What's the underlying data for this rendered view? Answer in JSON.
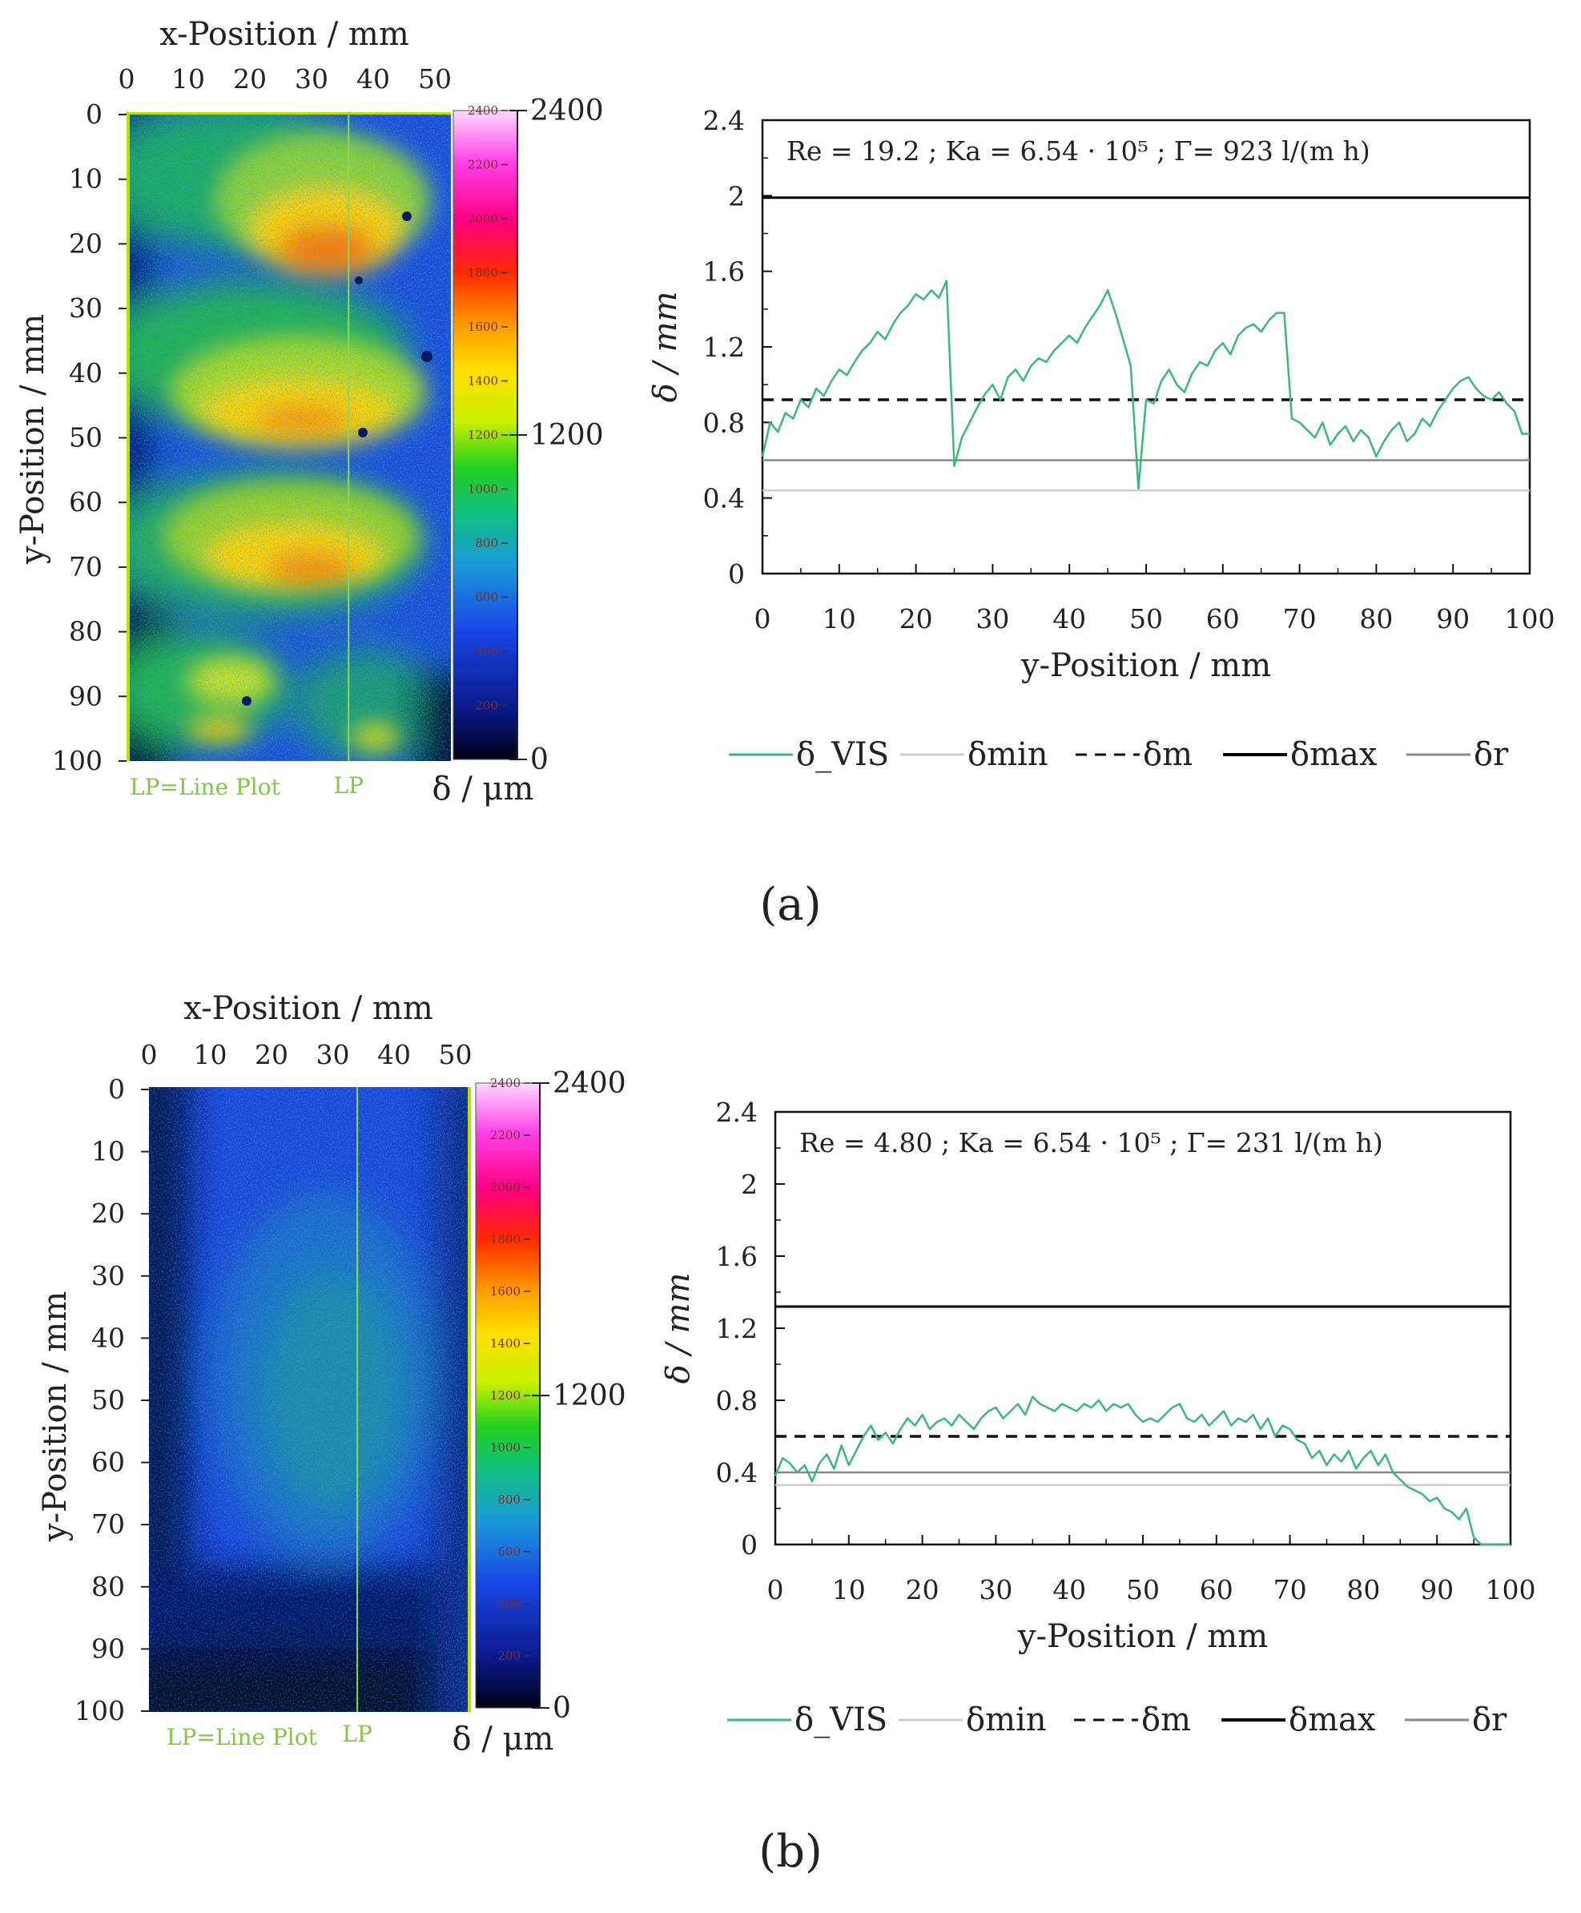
{
  "panels": [
    {
      "label": "(a)",
      "map": {
        "x_title": "x-Position / mm",
        "y_title": "y-Position / mm",
        "x_ticks": [
          "0",
          "10",
          "20",
          "30",
          "40",
          "50"
        ],
        "y_ticks": [
          "0",
          "10",
          "20",
          "30",
          "40",
          "50",
          "60",
          "70",
          "80",
          "90",
          "100"
        ],
        "lp_note": "LP=Line Plot",
        "lp_label": "LP",
        "line_plot_x_mm": 36,
        "colorbar_unit": "δ / μm",
        "colorbar_small_ticks": [
          "2400",
          "2200",
          "2000",
          "1800",
          "1600",
          "1400",
          "1200",
          "1000",
          "800",
          "600",
          "400",
          "200"
        ],
        "colorbar_big_ticks": [
          "2400",
          "1200",
          "0"
        ],
        "pattern": "waves"
      },
      "chart_data": {
        "type": "line",
        "info": "Re = 19.2 ;  Ka = 6.54 · 10⁵ ;  Γ= 923 l/(m h)",
        "xlabel": "y-Position / mm",
        "ylabel": "δ / mm",
        "xlim": [
          0,
          100
        ],
        "ylim": [
          0,
          2.4
        ],
        "x_ticks": [
          "0",
          "10",
          "20",
          "30",
          "40",
          "50",
          "60",
          "70",
          "80",
          "90",
          "100"
        ],
        "y_ticks": [
          "0",
          "0.4",
          "0.8",
          "1.2",
          "1.6",
          "2",
          "2.4"
        ],
        "series": [
          {
            "name": "δ_VIS",
            "color": "#3cb878",
            "x": [
              0,
              1,
              2,
              3,
              4,
              5,
              6,
              7,
              8,
              9,
              10,
              11,
              12,
              13,
              14,
              15,
              16,
              17,
              18,
              19,
              20,
              21,
              22,
              23,
              24,
              25,
              26,
              27,
              28,
              29,
              30,
              31,
              32,
              33,
              34,
              35,
              36,
              37,
              38,
              39,
              40,
              41,
              42,
              43,
              44,
              45,
              46,
              47,
              48,
              49,
              50,
              51,
              52,
              53,
              54,
              55,
              56,
              57,
              58,
              59,
              60,
              61,
              62,
              63,
              64,
              65,
              66,
              67,
              68,
              69,
              70,
              71,
              72,
              73,
              74,
              75,
              76,
              77,
              78,
              79,
              80,
              81,
              82,
              83,
              84,
              85,
              86,
              87,
              88,
              89,
              90,
              91,
              92,
              93,
              94,
              95,
              96,
              97,
              98,
              99,
              100
            ],
            "y": [
              0.62,
              0.8,
              0.75,
              0.85,
              0.82,
              0.92,
              0.88,
              0.98,
              0.94,
              1.02,
              1.08,
              1.05,
              1.12,
              1.18,
              1.22,
              1.28,
              1.24,
              1.32,
              1.38,
              1.42,
              1.48,
              1.45,
              1.5,
              1.46,
              1.55,
              0.57,
              0.72,
              0.8,
              0.88,
              0.95,
              1.0,
              0.92,
              1.04,
              1.08,
              1.02,
              1.1,
              1.14,
              1.12,
              1.18,
              1.22,
              1.26,
              1.22,
              1.3,
              1.36,
              1.42,
              1.5,
              1.38,
              1.24,
              1.1,
              0.45,
              0.92,
              0.9,
              1.02,
              1.08,
              1.0,
              0.96,
              1.06,
              1.12,
              1.1,
              1.18,
              1.22,
              1.16,
              1.26,
              1.3,
              1.32,
              1.28,
              1.34,
              1.38,
              1.38,
              0.82,
              0.8,
              0.76,
              0.72,
              0.8,
              0.68,
              0.74,
              0.78,
              0.7,
              0.76,
              0.72,
              0.62,
              0.7,
              0.76,
              0.8,
              0.7,
              0.74,
              0.82,
              0.78,
              0.86,
              0.92,
              0.98,
              1.02,
              1.04,
              0.98,
              0.94,
              0.92,
              0.96,
              0.9,
              0.86,
              0.74,
              0.74
            ]
          },
          {
            "name": "δmin",
            "color": "#cccccc",
            "dash": "solid",
            "value": 0.44
          },
          {
            "name": "δm",
            "color": "#111111",
            "dash": "dashed",
            "value": 0.92
          },
          {
            "name": "δmax",
            "color": "#000000",
            "dash": "solid",
            "value": 1.99
          },
          {
            "name": "δr",
            "color": "#888888",
            "dash": "solid",
            "value": 0.6
          }
        ]
      }
    },
    {
      "label": "(b)",
      "map": {
        "x_title": "x-Position / mm",
        "y_title": "y-Position / mm",
        "x_ticks": [
          "0",
          "10",
          "20",
          "30",
          "40",
          "50"
        ],
        "y_ticks": [
          "0",
          "10",
          "20",
          "30",
          "40",
          "50",
          "60",
          "70",
          "80",
          "90",
          "100"
        ],
        "lp_note": "LP=Line Plot",
        "lp_label": "LP",
        "line_plot_x_mm": 34,
        "colorbar_unit": "δ / μm",
        "colorbar_small_ticks": [
          "2400",
          "2200",
          "2000",
          "1800",
          "1600",
          "1400",
          "1200",
          "1000",
          "800",
          "600",
          "400",
          "200"
        ],
        "colorbar_big_ticks": [
          "2400",
          "1200",
          "0"
        ],
        "pattern": "flat"
      },
      "chart_data": {
        "type": "line",
        "info": "Re = 4.80 ;  Ka = 6.54 · 10⁵ ;  Γ= 231 l/(m h)",
        "xlabel": "y-Position / mm",
        "ylabel": "δ / mm",
        "xlim": [
          0,
          100
        ],
        "ylim": [
          0,
          2.4
        ],
        "x_ticks": [
          "0",
          "10",
          "20",
          "30",
          "40",
          "50",
          "60",
          "70",
          "80",
          "90",
          "100"
        ],
        "y_ticks": [
          "0",
          "0.4",
          "0.8",
          "1.2",
          "1.6",
          "2",
          "2.4"
        ],
        "series": [
          {
            "name": "δ_VIS",
            "color": "#3cb878",
            "x": [
              0,
              1,
              2,
              3,
              4,
              5,
              6,
              7,
              8,
              9,
              10,
              11,
              12,
              13,
              14,
              15,
              16,
              17,
              18,
              19,
              20,
              21,
              22,
              23,
              24,
              25,
              26,
              27,
              28,
              29,
              30,
              31,
              32,
              33,
              34,
              35,
              36,
              37,
              38,
              39,
              40,
              41,
              42,
              43,
              44,
              45,
              46,
              47,
              48,
              49,
              50,
              51,
              52,
              53,
              54,
              55,
              56,
              57,
              58,
              59,
              60,
              61,
              62,
              63,
              64,
              65,
              66,
              67,
              68,
              69,
              70,
              71,
              72,
              73,
              74,
              75,
              76,
              77,
              78,
              79,
              80,
              81,
              82,
              83,
              84,
              85,
              86,
              87,
              88,
              89,
              90,
              91,
              92,
              93,
              94,
              95,
              96,
              97,
              98,
              99,
              100
            ],
            "y": [
              0.38,
              0.48,
              0.45,
              0.4,
              0.44,
              0.35,
              0.45,
              0.5,
              0.42,
              0.55,
              0.44,
              0.52,
              0.6,
              0.66,
              0.58,
              0.62,
              0.56,
              0.64,
              0.7,
              0.66,
              0.72,
              0.64,
              0.68,
              0.7,
              0.66,
              0.72,
              0.68,
              0.64,
              0.7,
              0.74,
              0.76,
              0.7,
              0.74,
              0.78,
              0.72,
              0.82,
              0.78,
              0.76,
              0.74,
              0.78,
              0.76,
              0.74,
              0.78,
              0.76,
              0.8,
              0.74,
              0.78,
              0.76,
              0.78,
              0.72,
              0.68,
              0.7,
              0.68,
              0.72,
              0.76,
              0.78,
              0.7,
              0.68,
              0.72,
              0.66,
              0.7,
              0.74,
              0.66,
              0.7,
              0.68,
              0.72,
              0.64,
              0.7,
              0.6,
              0.66,
              0.64,
              0.58,
              0.56,
              0.48,
              0.52,
              0.44,
              0.5,
              0.46,
              0.52,
              0.42,
              0.48,
              0.52,
              0.44,
              0.5,
              0.4,
              0.36,
              0.32,
              0.3,
              0.28,
              0.24,
              0.26,
              0.2,
              0.18,
              0.14,
              0.2,
              0.04,
              0.0,
              0.0,
              0.0,
              0.0,
              0.0
            ]
          },
          {
            "name": "δmin",
            "color": "#cccccc",
            "dash": "solid",
            "value": 0.33
          },
          {
            "name": "δm",
            "color": "#111111",
            "dash": "dashed",
            "value": 0.6
          },
          {
            "name": "δmax",
            "color": "#000000",
            "dash": "solid",
            "value": 1.32
          },
          {
            "name": "δr",
            "color": "#888888",
            "dash": "solid",
            "value": 0.4
          }
        ]
      }
    }
  ]
}
